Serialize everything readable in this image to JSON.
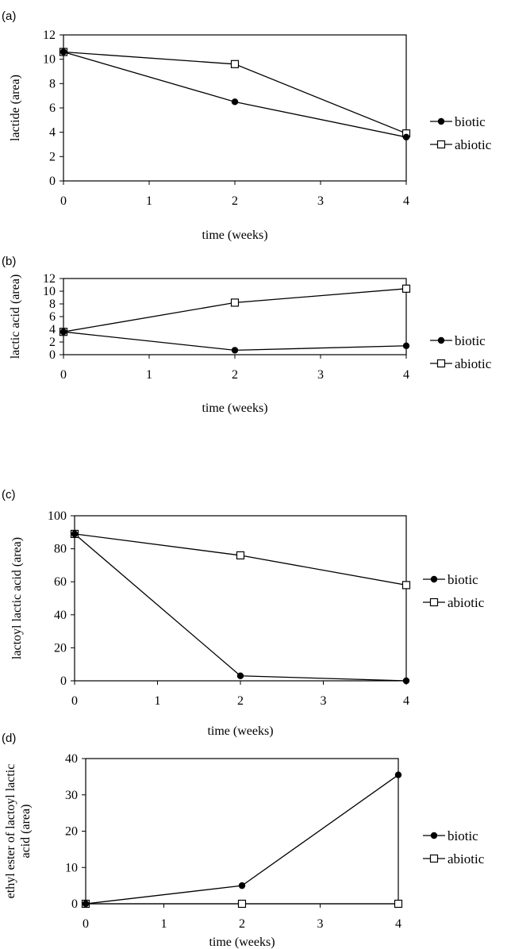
{
  "chart_data": [
    {
      "type": "line",
      "panel_label": "(a)",
      "xlabel": "time (weeks)",
      "ylabel": "lactide (area)",
      "x": [
        0,
        2,
        4
      ],
      "xticks": [
        "0",
        "1",
        "2",
        "3",
        "4"
      ],
      "xlim": [
        0,
        4
      ],
      "ylim": [
        0,
        12
      ],
      "yticks": [
        "0",
        "2",
        "4",
        "6",
        "8",
        "10",
        "12"
      ],
      "grid": false,
      "legend": "right",
      "series": [
        {
          "name": "biotic",
          "marker": "filled-circle",
          "values": [
            10.6,
            6.5,
            3.6
          ]
        },
        {
          "name": "abiotic",
          "marker": "open-square",
          "values": [
            10.6,
            9.6,
            3.9
          ]
        }
      ]
    },
    {
      "type": "line",
      "panel_label": "(b)",
      "xlabel": "time (weeks)",
      "ylabel": "lactic acid (area)",
      "x": [
        0,
        2,
        4
      ],
      "xticks": [
        "0",
        "1",
        "2",
        "3",
        "4"
      ],
      "xlim": [
        0,
        4
      ],
      "ylim": [
        0,
        12
      ],
      "yticks": [
        "0",
        "2",
        "4",
        "6",
        "8",
        "10",
        "12"
      ],
      "grid": false,
      "legend": "right",
      "series": [
        {
          "name": "biotic",
          "marker": "filled-circle",
          "values": [
            3.6,
            0.7,
            1.4
          ]
        },
        {
          "name": "abiotic",
          "marker": "open-square",
          "values": [
            3.6,
            8.2,
            10.4
          ]
        }
      ]
    },
    {
      "type": "line",
      "panel_label": "(c)",
      "xlabel": "time (weeks)",
      "ylabel": "lactoyl lactic acid (area)",
      "x": [
        0,
        2,
        4
      ],
      "xticks": [
        "0",
        "1",
        "2",
        "3",
        "4"
      ],
      "xlim": [
        0,
        4
      ],
      "ylim": [
        0,
        100
      ],
      "yticks": [
        "0",
        "20",
        "40",
        "60",
        "80",
        "100"
      ],
      "grid": false,
      "legend": "right",
      "series": [
        {
          "name": "biotic",
          "marker": "filled-circle",
          "values": [
            89,
            3,
            0
          ]
        },
        {
          "name": "abiotic",
          "marker": "open-square",
          "values": [
            89,
            76,
            58
          ]
        }
      ]
    },
    {
      "type": "line",
      "panel_label": "(d)",
      "xlabel": "time (weeks)",
      "ylabel": [
        "ethyl ester of lactoyl lactic",
        "acid (area)"
      ],
      "x": [
        0,
        2,
        4
      ],
      "xticks": [
        "0",
        "1",
        "2",
        "3",
        "4"
      ],
      "xlim": [
        0,
        4
      ],
      "ylim": [
        0,
        40
      ],
      "yticks": [
        "0",
        "10",
        "20",
        "30",
        "40"
      ],
      "grid": false,
      "legend": "right",
      "series": [
        {
          "name": "biotic",
          "marker": "filled-circle",
          "values": [
            0,
            5,
            35.5
          ]
        },
        {
          "name": "abiotic",
          "marker": "open-square",
          "values": [
            0,
            0,
            0
          ]
        }
      ]
    }
  ]
}
